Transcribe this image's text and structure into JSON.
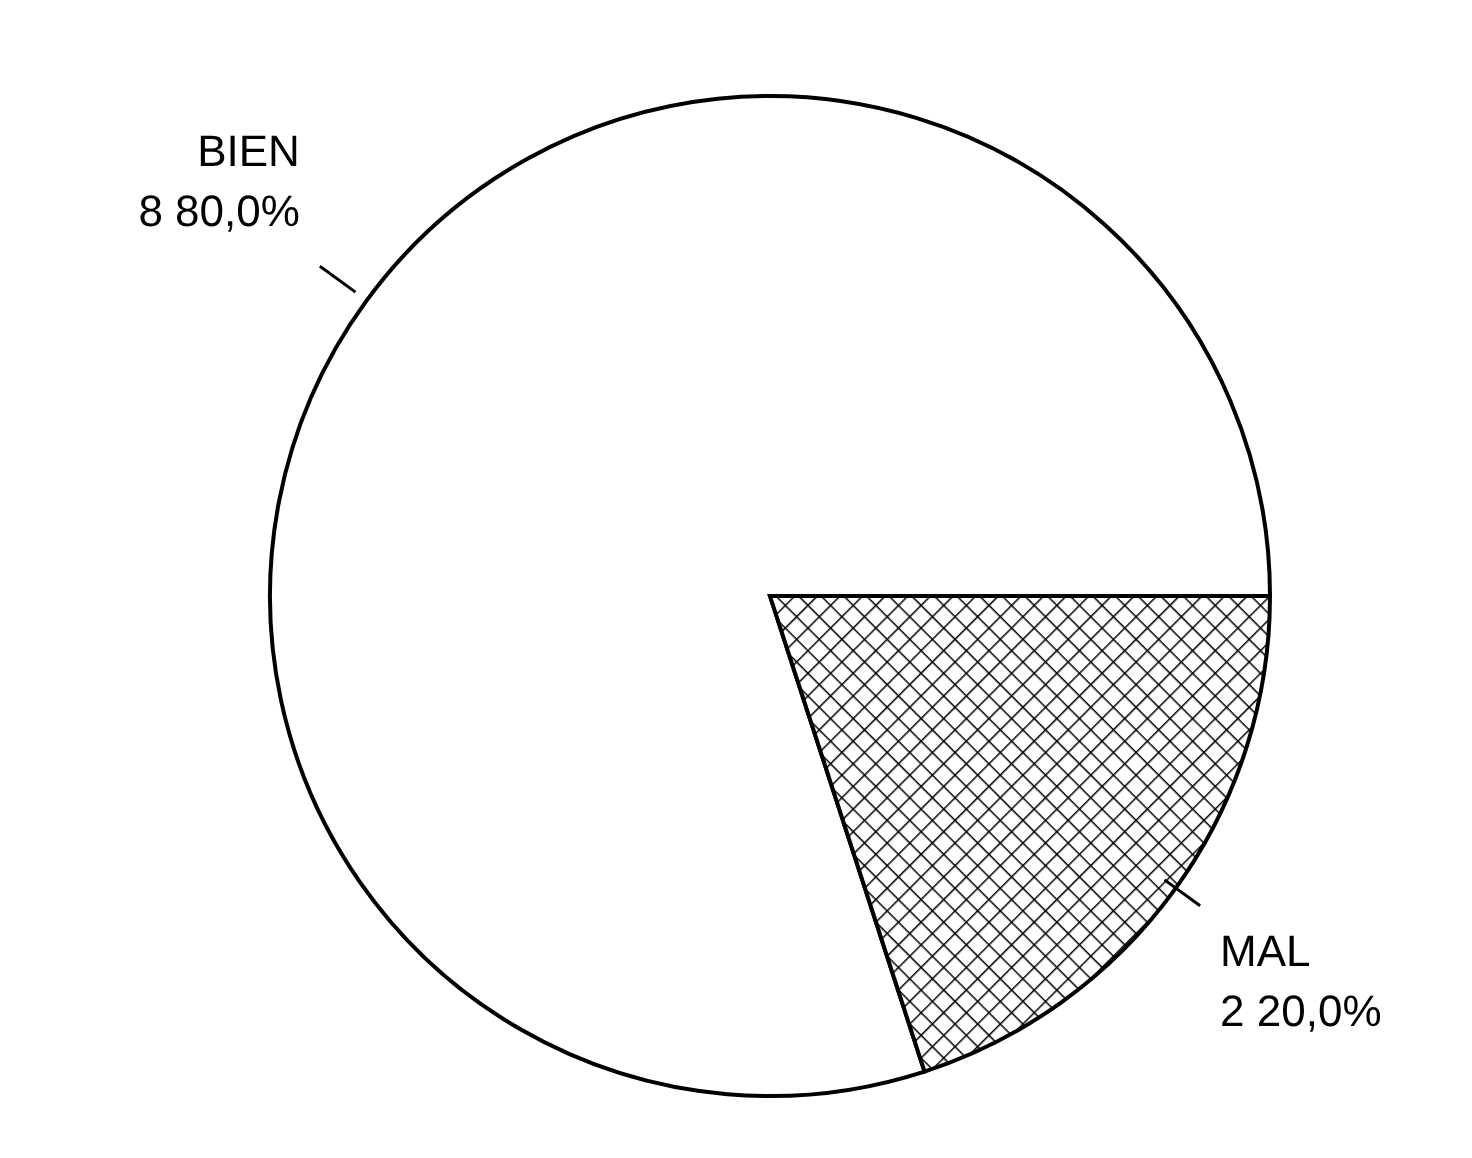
{
  "chart_data": {
    "type": "pie",
    "categories": [
      "BIEN",
      "MAL"
    ],
    "values": [
      8,
      2
    ],
    "value_labels": [
      "8  80,0%",
      "2  20,0%"
    ],
    "colors": [
      "#ffffff",
      "#000000"
    ],
    "legend": false
  }
}
